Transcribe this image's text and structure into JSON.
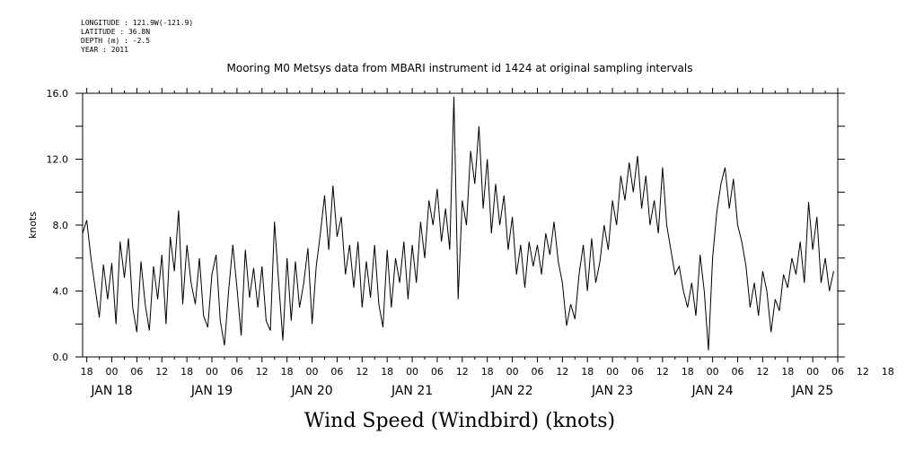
{
  "meta": {
    "longitude": "LONGITUDE : 121.9W(-121.9)",
    "latitude": "LATITUDE : 36.8N",
    "depth": "DEPTH (m) : -2.5",
    "year": "YEAR : 2011"
  },
  "chart_data": {
    "type": "line",
    "title": "Mooring M0 Metsys data from MBARI instrument id 1424 at original sampling intervals",
    "xlabel": "Wind Speed (Windbird) (knots)",
    "ylabel": "knots",
    "ylim": [
      0,
      16
    ],
    "yticks": [
      "0.0",
      "4.0",
      "8.0",
      "12.0",
      "16.0"
    ],
    "xlim_hours": [
      -7,
      174
    ],
    "x_unit": "hours since JAN 18 00:00, 2011",
    "hour_ticks": [
      "18",
      "00",
      "06",
      "12",
      "18",
      "00",
      "06",
      "12",
      "18",
      "00",
      "06",
      "12",
      "18",
      "00",
      "06",
      "12",
      "18",
      "00",
      "06",
      "12",
      "18",
      "00",
      "06",
      "12",
      "18",
      "00",
      "06",
      "12",
      "18",
      "00",
      "06",
      "12",
      "18"
    ],
    "day_labels": [
      "JAN 18",
      "JAN 19",
      "JAN 20",
      "JAN 21",
      "JAN 22",
      "JAN 23",
      "JAN 24",
      "JAN 25"
    ],
    "grid": false,
    "series": [
      {
        "values": [
          [
            -7,
            7.5
          ],
          [
            -6,
            8.3
          ],
          [
            -5,
            6.0
          ],
          [
            -4,
            4.2
          ],
          [
            -3,
            2.4
          ],
          [
            -2,
            5.6
          ],
          [
            -1,
            3.5
          ],
          [
            0,
            5.7
          ],
          [
            1,
            2.0
          ],
          [
            2,
            7.0
          ],
          [
            3,
            4.8
          ],
          [
            4,
            7.2
          ],
          [
            5,
            3.0
          ],
          [
            6,
            1.5
          ],
          [
            7,
            5.8
          ],
          [
            8,
            3.2
          ],
          [
            9,
            1.6
          ],
          [
            10,
            5.5
          ],
          [
            11,
            3.5
          ],
          [
            12,
            6.2
          ],
          [
            13,
            2.0
          ],
          [
            14,
            7.3
          ],
          [
            15,
            5.2
          ],
          [
            16,
            8.9
          ],
          [
            17,
            3.2
          ],
          [
            18,
            6.8
          ],
          [
            19,
            4.5
          ],
          [
            20,
            3.2
          ],
          [
            21,
            6.0
          ],
          [
            22,
            2.5
          ],
          [
            23,
            1.8
          ],
          [
            24,
            5.0
          ],
          [
            25,
            6.2
          ],
          [
            26,
            2.2
          ],
          [
            27,
            0.7
          ],
          [
            28,
            4.0
          ],
          [
            29,
            6.8
          ],
          [
            30,
            4.2
          ],
          [
            31,
            1.3
          ],
          [
            32,
            6.5
          ],
          [
            33,
            3.6
          ],
          [
            34,
            5.4
          ],
          [
            35,
            3.0
          ],
          [
            36,
            5.5
          ],
          [
            37,
            2.2
          ],
          [
            38,
            1.6
          ],
          [
            39,
            8.2
          ],
          [
            40,
            4.5
          ],
          [
            41,
            1.0
          ],
          [
            42,
            6.0
          ],
          [
            43,
            2.2
          ],
          [
            44,
            5.8
          ],
          [
            45,
            3.0
          ],
          [
            46,
            4.5
          ],
          [
            47,
            6.6
          ],
          [
            48,
            2.0
          ],
          [
            49,
            5.5
          ],
          [
            50,
            7.5
          ],
          [
            51,
            9.8
          ],
          [
            52,
            6.5
          ],
          [
            53,
            10.4
          ],
          [
            54,
            7.3
          ],
          [
            55,
            8.5
          ],
          [
            56,
            5.0
          ],
          [
            57,
            6.8
          ],
          [
            58,
            4.2
          ],
          [
            59,
            7.0
          ],
          [
            60,
            3.0
          ],
          [
            61,
            5.8
          ],
          [
            62,
            3.6
          ],
          [
            63,
            6.8
          ],
          [
            64,
            3.2
          ],
          [
            65,
            1.8
          ],
          [
            66,
            6.5
          ],
          [
            67,
            3.0
          ],
          [
            68,
            6.0
          ],
          [
            69,
            4.5
          ],
          [
            70,
            7.0
          ],
          [
            71,
            3.5
          ],
          [
            72,
            6.8
          ],
          [
            73,
            4.5
          ],
          [
            74,
            8.2
          ],
          [
            75,
            6.0
          ],
          [
            76,
            9.5
          ],
          [
            77,
            8.0
          ],
          [
            78,
            10.2
          ],
          [
            79,
            7.0
          ],
          [
            80,
            9.0
          ],
          [
            81,
            6.5
          ],
          [
            82,
            15.8
          ],
          [
            83,
            3.5
          ],
          [
            84,
            9.5
          ],
          [
            85,
            8.0
          ],
          [
            86,
            12.5
          ],
          [
            87,
            10.5
          ],
          [
            88,
            14.0
          ],
          [
            89,
            9.0
          ],
          [
            90,
            12.0
          ],
          [
            91,
            7.5
          ],
          [
            92,
            10.5
          ],
          [
            93,
            8.0
          ],
          [
            94,
            9.8
          ],
          [
            95,
            6.5
          ],
          [
            96,
            8.5
          ],
          [
            97,
            5.0
          ],
          [
            98,
            6.8
          ],
          [
            99,
            4.2
          ],
          [
            100,
            7.0
          ],
          [
            101,
            5.5
          ],
          [
            102,
            6.8
          ],
          [
            103,
            5.0
          ],
          [
            104,
            7.5
          ],
          [
            105,
            6.2
          ],
          [
            106,
            8.2
          ],
          [
            107,
            5.8
          ],
          [
            108,
            4.5
          ],
          [
            109,
            1.9
          ],
          [
            110,
            3.2
          ],
          [
            111,
            2.3
          ],
          [
            112,
            5.0
          ],
          [
            113,
            6.8
          ],
          [
            114,
            4.0
          ],
          [
            115,
            7.2
          ],
          [
            116,
            4.5
          ],
          [
            117,
            5.8
          ],
          [
            118,
            8.0
          ],
          [
            119,
            6.5
          ],
          [
            120,
            9.5
          ],
          [
            121,
            8.0
          ],
          [
            122,
            11.0
          ],
          [
            123,
            9.5
          ],
          [
            124,
            11.8
          ],
          [
            125,
            10.0
          ],
          [
            126,
            12.2
          ],
          [
            127,
            9.0
          ],
          [
            128,
            11.0
          ],
          [
            129,
            8.0
          ],
          [
            130,
            9.5
          ],
          [
            131,
            7.5
          ],
          [
            132,
            11.5
          ],
          [
            133,
            8.0
          ],
          [
            134,
            6.5
          ],
          [
            135,
            5.0
          ],
          [
            136,
            5.5
          ],
          [
            137,
            4.0
          ],
          [
            138,
            3.0
          ],
          [
            139,
            4.5
          ],
          [
            140,
            2.5
          ],
          [
            141,
            6.2
          ],
          [
            142,
            4.0
          ],
          [
            143,
            0.4
          ],
          [
            144,
            6.0
          ],
          [
            145,
            8.8
          ],
          [
            146,
            10.5
          ],
          [
            147,
            11.5
          ],
          [
            148,
            9.0
          ],
          [
            149,
            10.8
          ],
          [
            150,
            8.0
          ],
          [
            151,
            7.0
          ],
          [
            152,
            5.5
          ],
          [
            153,
            3.0
          ],
          [
            154,
            4.5
          ],
          [
            155,
            2.5
          ],
          [
            156,
            5.2
          ],
          [
            157,
            4.0
          ],
          [
            158,
            1.5
          ],
          [
            159,
            3.5
          ],
          [
            160,
            2.8
          ],
          [
            161,
            5.0
          ],
          [
            162,
            4.2
          ],
          [
            163,
            6.0
          ],
          [
            164,
            5.0
          ],
          [
            165,
            7.0
          ],
          [
            166,
            4.5
          ],
          [
            167,
            9.4
          ],
          [
            168,
            6.5
          ],
          [
            169,
            8.5
          ],
          [
            170,
            4.5
          ],
          [
            171,
            6.0
          ],
          [
            172,
            4.0
          ],
          [
            173,
            5.2
          ]
        ]
      }
    ]
  }
}
